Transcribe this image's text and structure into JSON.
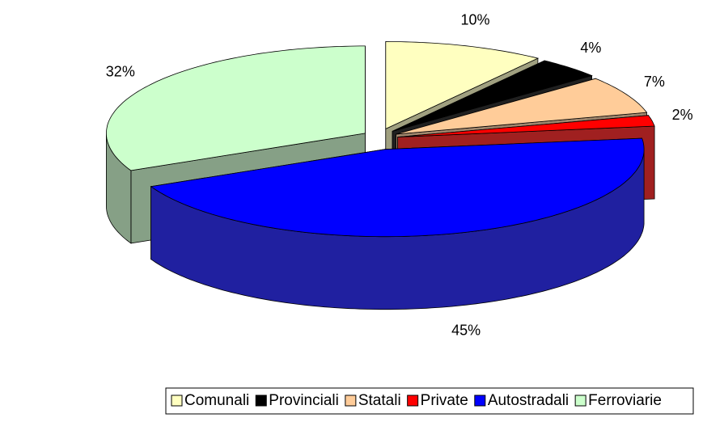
{
  "chart_data": {
    "type": "pie3d",
    "categories": [
      "Comunali",
      "Provinciali",
      "Statali",
      "Private",
      "Autostradali",
      "Ferroviarie"
    ],
    "values": [
      10,
      4,
      7,
      2,
      45,
      32
    ],
    "value_labels": [
      "10%",
      "4%",
      "7%",
      "2%",
      "45%",
      "32%"
    ],
    "colors": [
      "#ffffc0",
      "#000000",
      "#ffcc99",
      "#ff0000",
      "#0000ff",
      "#ccffcc"
    ],
    "legend": "bottom"
  }
}
